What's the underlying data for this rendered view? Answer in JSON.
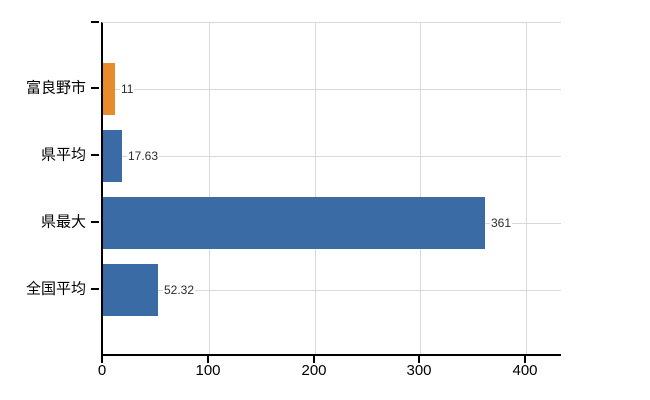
{
  "chart_data": {
    "type": "bar",
    "orientation": "horizontal",
    "title": "",
    "xlabel": "",
    "ylabel": "",
    "categories": [
      "富良野市",
      "県平均",
      "県最大",
      "全国平均"
    ],
    "values": [
      11,
      17.63,
      361,
      52.32
    ],
    "value_labels": [
      "11",
      "17.63",
      "361",
      "52.32"
    ],
    "bar_colors": [
      "#e88b2d",
      "#3a6ba5",
      "#3a6ba5",
      "#3a6ba5"
    ],
    "x_ticks": [
      0,
      100,
      200,
      300,
      400
    ],
    "x_tick_labels": [
      "0",
      "100",
      "200",
      "300",
      "400"
    ],
    "xlim": [
      0,
      433
    ],
    "grid": true,
    "legend": null
  },
  "colors": {
    "bar_blue": "#3a6ba5",
    "bar_orange": "#e88b2d",
    "gridline": "#d9d9d9",
    "axis": "#000000",
    "value_text": "#2b2b2b",
    "label_text": "#000000",
    "background": "#ffffff"
  }
}
